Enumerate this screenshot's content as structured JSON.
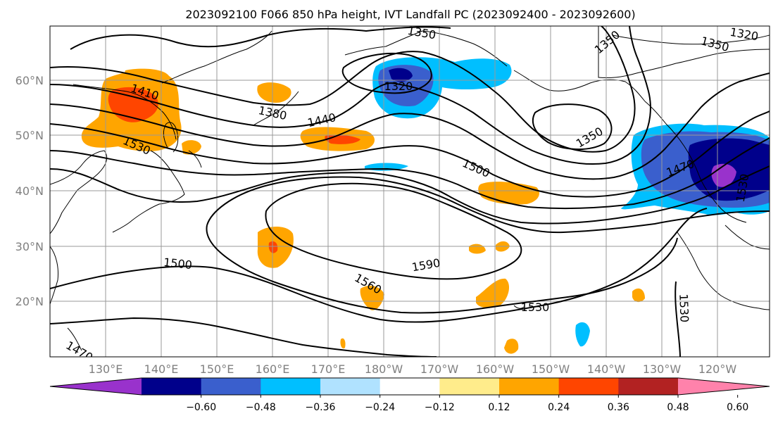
{
  "title": "2023092100 F066 850 hPa height, IVT Landfall PC (2023092400 - 2023092600)",
  "lat_labels": [
    "60°N",
    "50°N",
    "40°N",
    "30°N",
    "20°N"
  ],
  "lon_labels": [
    "130°E",
    "140°E",
    "150°E",
    "160°E",
    "170°E",
    "180°W",
    "170°W",
    "160°W",
    "150°W",
    "140°W",
    "130°W",
    "120°W"
  ],
  "contour_labels": [
    "1350",
    "1320",
    "1350",
    "1320",
    "1350",
    "1410",
    "1380",
    "1440",
    "1350",
    "1530",
    "1500",
    "1470",
    "1530",
    "1500",
    "1560",
    "1590",
    "1530",
    "1530",
    "1470"
  ],
  "colorbar": {
    "ticks": [
      "−0.60",
      "−0.48",
      "−0.36",
      "−0.24",
      "−0.12",
      "0.12",
      "0.24",
      "0.36",
      "0.48",
      "0.60"
    ],
    "colors": [
      "#9932cc",
      "#00008b",
      "#3a5fcd",
      "#00bfff",
      "#b0e2ff",
      "#ffffff",
      "#ffec8b",
      "#ffa500",
      "#ff4500",
      "#b22222",
      "#ff82ab"
    ]
  }
}
